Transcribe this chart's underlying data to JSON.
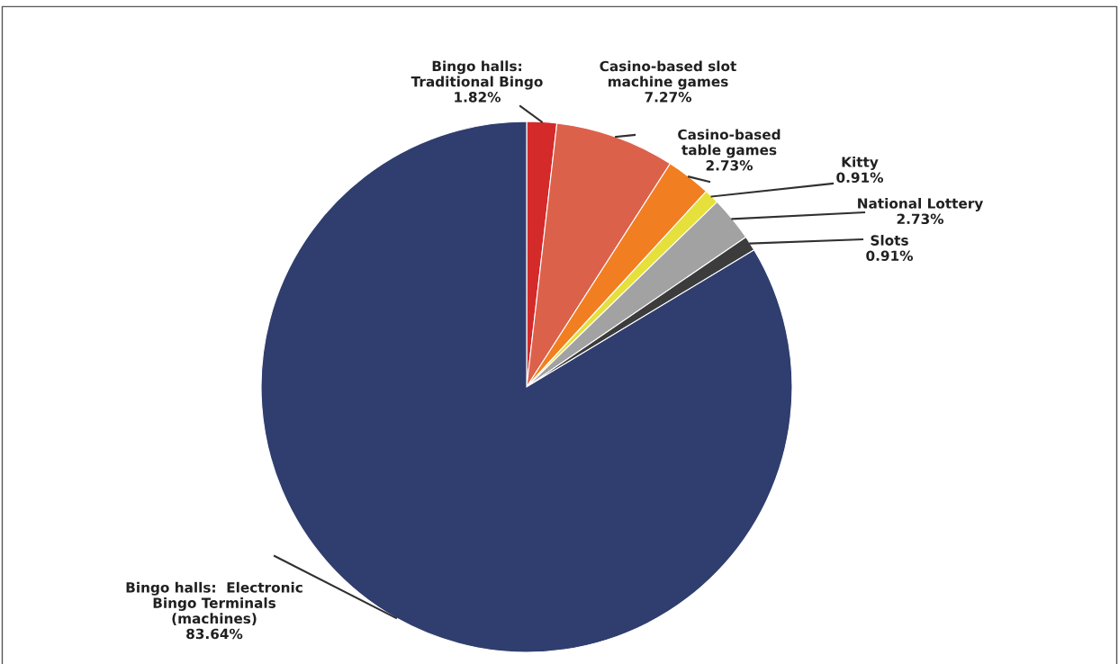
{
  "chart_data": {
    "type": "pie",
    "categories": [
      "Bingo halls:\nTraditional Bingo",
      "Casino-based slot\nmachine games",
      "Casino-based\ntable games",
      "Kitty",
      "National Lottery",
      "Slots",
      "Bingo halls:  Electronic\nBingo Terminals\n(machines)"
    ],
    "values": [
      1.82,
      7.27,
      2.73,
      0.91,
      2.73,
      0.91,
      83.64
    ],
    "value_labels": [
      "1.82%",
      "7.27%",
      "2.73%",
      "0.91%",
      "2.73%",
      "0.91%",
      "83.64%"
    ],
    "colors": [
      "#d42a2a",
      "#dc614b",
      "#f27e22",
      "#e6e03c",
      "#a2a2a2",
      "#3c3c3c",
      "#2f3e6e"
    ],
    "legend": false
  }
}
